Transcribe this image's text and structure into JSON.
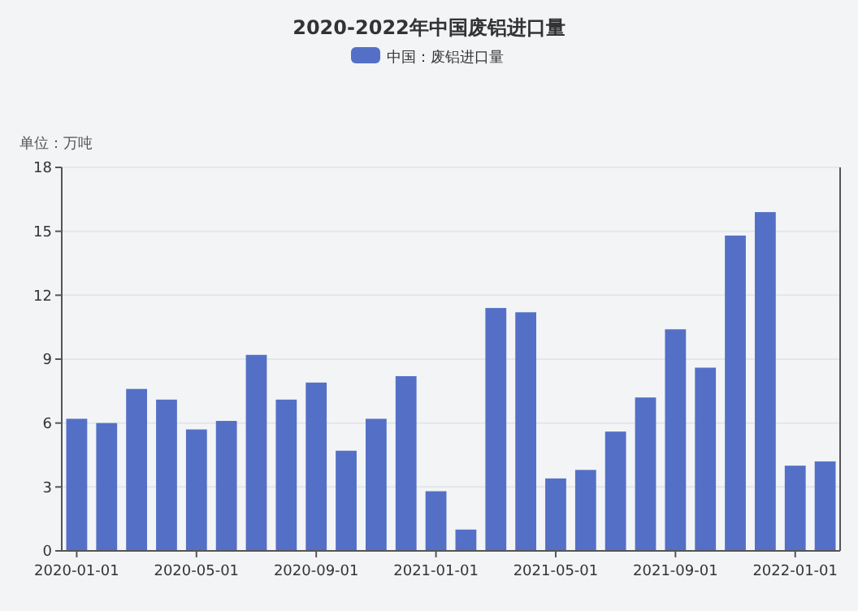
{
  "chart_data": {
    "type": "bar",
    "title": "2020-2022年中国废铝进口量",
    "ylabel": "单位：万吨",
    "categories": [
      "2020-01-01",
      null,
      null,
      null,
      "2020-05-01",
      null,
      null,
      null,
      "2020-09-01",
      null,
      null,
      null,
      "2021-01-01",
      null,
      null,
      null,
      "2021-05-01",
      null,
      null,
      null,
      "2021-09-01",
      null,
      null,
      null,
      "2022-01-01",
      null
    ],
    "series": [
      {
        "name": "中国：废铝进口量",
        "color": "#5470c6",
        "values": [
          6.2,
          6.0,
          7.6,
          7.1,
          5.7,
          6.1,
          9.2,
          7.1,
          7.9,
          4.7,
          6.2,
          8.2,
          2.8,
          1.0,
          11.4,
          11.2,
          3.4,
          3.8,
          5.6,
          7.2,
          10.4,
          8.6,
          14.8,
          15.9,
          4.0,
          4.2
        ]
      }
    ],
    "ylim": [
      0,
      18
    ],
    "yticks": [
      0,
      3,
      6,
      9,
      12,
      15,
      18
    ],
    "grid": "y",
    "legend": "top"
  }
}
